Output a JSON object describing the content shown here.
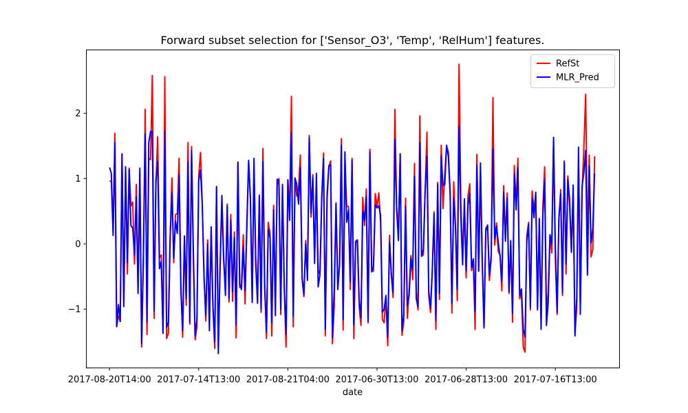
{
  "chart_data": {
    "type": "line",
    "title": "Forward subset selection for ['Sensor_O3', 'Temp', 'RelHum'] features.",
    "xlabel": "date",
    "ylabel": "",
    "x_tick_labels": [
      "2017-08-20T14:00",
      "2017-07-14T13:00",
      "2017-08-21T04:00",
      "2017-06-30T13:00",
      "2017-06-28T13:00",
      "2017-07-16T13:00"
    ],
    "x_tick_positions": [
      0,
      50,
      100,
      150,
      200,
      250
    ],
    "xlim": [
      -13,
      286
    ],
    "ylim": [
      -1.9,
      2.97
    ],
    "y_ticks": [
      -1,
      0,
      1,
      2
    ],
    "y_tick_labels": [
      "−1",
      "0",
      "1",
      "2"
    ],
    "grid": false,
    "legend": "top-right",
    "series": [
      {
        "name": "RefSt",
        "color": "#ff0000",
        "values": [
          0.96,
          0.96,
          0.2,
          1.69,
          -1.26,
          -1.1,
          -1.19,
          1.37,
          -0.9,
          1.15,
          -0.46,
          1.16,
          0.58,
          0.64,
          -0.31,
          0.91,
          -0.71,
          1.07,
          -1.58,
          -0.22,
          2.06,
          -1.39,
          1.31,
          1.29,
          2.58,
          -1.14,
          0.9,
          1.64,
          -0.21,
          -0.17,
          -1.37,
          2.56,
          -1.45,
          -1.37,
          0.11,
          1.01,
          -0.29,
          0.45,
          0.46,
          1.31,
          -0.57,
          -1.43,
          0.04,
          -0.94,
          1.55,
          -1.23,
          1.49,
          -0.26,
          -1.47,
          -1.27,
          1.03,
          1.4,
          0.63,
          -0.49,
          -1.18,
          0.06,
          -1.2,
          0.22,
          -0.98,
          -1.6,
          0.88,
          -1.56,
          -0.38,
          0.62,
          -0.27,
          -0.69,
          0.61,
          -0.89,
          0.45,
          -0.88,
          0.18,
          -1.44,
          1.25,
          -0.67,
          -0.62,
          0.14,
          -0.92,
          0.34,
          1.25,
          0.68,
          -0.9,
          1.13,
          -0.22,
          -0.83,
          0.75,
          -1.05,
          1.46,
          -0.56,
          -1.45,
          0.33,
          0.16,
          -1.41,
          0.59,
          -0.95,
          0.89,
          1.0,
          -1.08,
          0.87,
          -0.68,
          -1.58,
          0.98,
          0.53,
          2.26,
          -1.27,
          1.0,
          0.73,
          0.85,
          1.36,
          -0.54,
          -0.81,
          0.05,
          -0.5,
          1.66,
          0.41,
          1.06,
          -0.21,
          0.96,
          -0.4,
          -0.47,
          0.67,
          1.39,
          -1.41,
          0.69,
          1.18,
          1.27,
          -1.53,
          -0.96,
          0.63,
          -0.62,
          -0.33,
          1.61,
          -1.32,
          1.25,
          0.58,
          0.57,
          -0.7,
          1.31,
          -1.45,
          0.01,
          0.06,
          -0.97,
          -1.25,
          0.71,
          0.28,
          0.84,
          -1.21,
          1.45,
          -0.36,
          -0.42,
          0.77,
          0.57,
          0.78,
          0.32,
          -1.16,
          -1.21,
          -0.81,
          -1.56,
          0.13,
          -0.47,
          -0.82,
          2.06,
          0.58,
          0.18,
          1.37,
          -1.4,
          -1.19,
          0.7,
          -1.14,
          -0.72,
          -0.18,
          -0.55,
          1.23,
          -0.74,
          -1.01,
          1.96,
          -0.19,
          -0.17,
          0.82,
          1.71,
          -0.79,
          -1.05,
          -0.43,
          0.49,
          -1.31,
          0.94,
          -0.85,
          1.51,
          0.54,
          1.07,
          1.5,
          1.41,
          0.8,
          -1.06,
          0.95,
          0.26,
          -0.87,
          2.75,
          0.63,
          -0.21,
          0.55,
          -0.52,
          0.73,
          0.92,
          -0.41,
          -0.25,
          -1.31,
          1.37,
          -0.4,
          1.0,
          -0.29,
          -1.29,
          0.24,
          0.28,
          -0.56,
          -0.24,
          2.24,
          -0.02,
          0.32,
          -0.12,
          -0.17,
          -0.72,
          0.89,
          0.09,
          0.78,
          -0.76,
          0.01,
          -1.2,
          1.2,
          0.59,
          1.31,
          -0.84,
          -0.76,
          -1.58,
          -1.66,
          0.12,
          0.33,
          -1.01,
          0.81,
          0.53,
          0.75,
          -0.96,
          0.39,
          -1.2,
          0.57,
          1.18,
          -1.04,
          -0.74,
          0.13,
          -0.14,
          1.58,
          -0.24,
          -1.08,
          0.39,
          0.83,
          -0.79,
          1.27,
          -0.46,
          1.04,
          0.57,
          -0.11,
          0.74,
          -1.35,
          -0.99,
          1.32,
          -0.94,
          0.83,
          1.47,
          2.29,
          -0.01,
          1.36,
          -0.2,
          -0.09,
          1.34
        ]
      },
      {
        "name": "MLR_Pred",
        "color": "#0000ff",
        "values": [
          1.17,
          1.08,
          0.13,
          1.55,
          -1.27,
          -0.93,
          -1.19,
          1.38,
          -0.96,
          1.18,
          -0.29,
          1.14,
          0.28,
          0.24,
          -0.17,
          0.72,
          -0.76,
          1.16,
          -1.53,
          -0.16,
          1.68,
          -1.2,
          1.55,
          1.72,
          1.72,
          -1.03,
          0.97,
          1.26,
          -0.38,
          -0.27,
          -1.37,
          1.73,
          -1.28,
          -1.2,
          0.1,
          0.79,
          -0.22,
          0.35,
          0.16,
          1.06,
          -0.71,
          -1.33,
          0.12,
          -0.84,
          1.26,
          -1.2,
          1.43,
          -0.09,
          -1.41,
          -1.16,
          0.96,
          1.13,
          0.6,
          -0.53,
          -1.1,
          0.0,
          -1.33,
          0.26,
          -0.97,
          -1.5,
          0.87,
          -1.68,
          -0.32,
          0.74,
          -0.2,
          -0.79,
          0.58,
          -0.84,
          0.37,
          -0.73,
          0.1,
          -1.24,
          1.25,
          -0.62,
          -0.7,
          -0.03,
          -0.72,
          0.23,
          1.28,
          0.71,
          -0.89,
          1.31,
          -0.33,
          -0.91,
          0.73,
          -1.01,
          1.26,
          -0.68,
          -1.36,
          0.22,
          0.09,
          -1.21,
          0.52,
          -1.1,
          0.99,
          0.97,
          -1.01,
          0.91,
          -0.71,
          -1.39,
          0.98,
          0.36,
          1.71,
          -1.11,
          1.01,
          0.91,
          0.61,
          1.17,
          -0.51,
          -0.78,
          0.0,
          -0.56,
          1.63,
          0.47,
          1.02,
          -0.3,
          1.08,
          -0.66,
          -0.47,
          0.73,
          1.31,
          -1.31,
          0.76,
          1.2,
          1.21,
          -1.44,
          -0.72,
          0.61,
          -0.7,
          -0.31,
          1.51,
          -1.16,
          1.41,
          0.33,
          0.52,
          -0.58,
          1.28,
          -1.24,
          0.04,
          0.06,
          -0.86,
          -1.13,
          0.5,
          0.35,
          0.72,
          -1.19,
          1.41,
          -0.43,
          -0.35,
          0.6,
          0.55,
          0.58,
          0.44,
          -1.05,
          -1.0,
          -0.79,
          -1.43,
          0.02,
          -0.45,
          -0.75,
          1.6,
          0.53,
          0.05,
          1.38,
          -1.33,
          -1.08,
          0.58,
          -0.95,
          -0.79,
          -0.22,
          -0.4,
          1.03,
          -0.84,
          -0.97,
          1.55,
          -0.19,
          -0.08,
          0.84,
          1.34,
          -0.72,
          -0.99,
          -0.39,
          0.46,
          -1.18,
          0.91,
          -0.76,
          1.35,
          0.89,
          0.91,
          1.51,
          1.34,
          0.76,
          -0.91,
          0.7,
          0.26,
          -0.69,
          1.8,
          0.43,
          -0.32,
          0.69,
          -0.42,
          0.59,
          0.77,
          -0.36,
          -0.23,
          -1.03,
          1.21,
          -0.42,
          1.24,
          -0.22,
          -1.28,
          0.19,
          0.29,
          -0.48,
          -0.19,
          1.45,
          0.07,
          0.27,
          0.02,
          -0.19,
          -0.58,
          0.79,
          0.04,
          0.7,
          -0.73,
          0.05,
          -1.06,
          1.07,
          0.52,
          1.16,
          -0.79,
          -0.69,
          -1.31,
          -1.43,
          0.05,
          0.3,
          -0.97,
          0.71,
          0.4,
          0.79,
          -1.01,
          0.38,
          -1.31,
          0.43,
          1.0,
          -1.25,
          -0.9,
          0.14,
          -0.01,
          1.63,
          -0.05,
          -1.05,
          0.39,
          0.77,
          -0.75,
          1.25,
          -0.31,
          0.99,
          0.68,
          -0.13,
          0.9,
          -1.41,
          -0.82,
          1.48,
          -1.08,
          0.88,
          1.09,
          1.43,
          -0.48,
          1.19,
          0.01,
          0.23,
          1.08
        ]
      }
    ]
  }
}
